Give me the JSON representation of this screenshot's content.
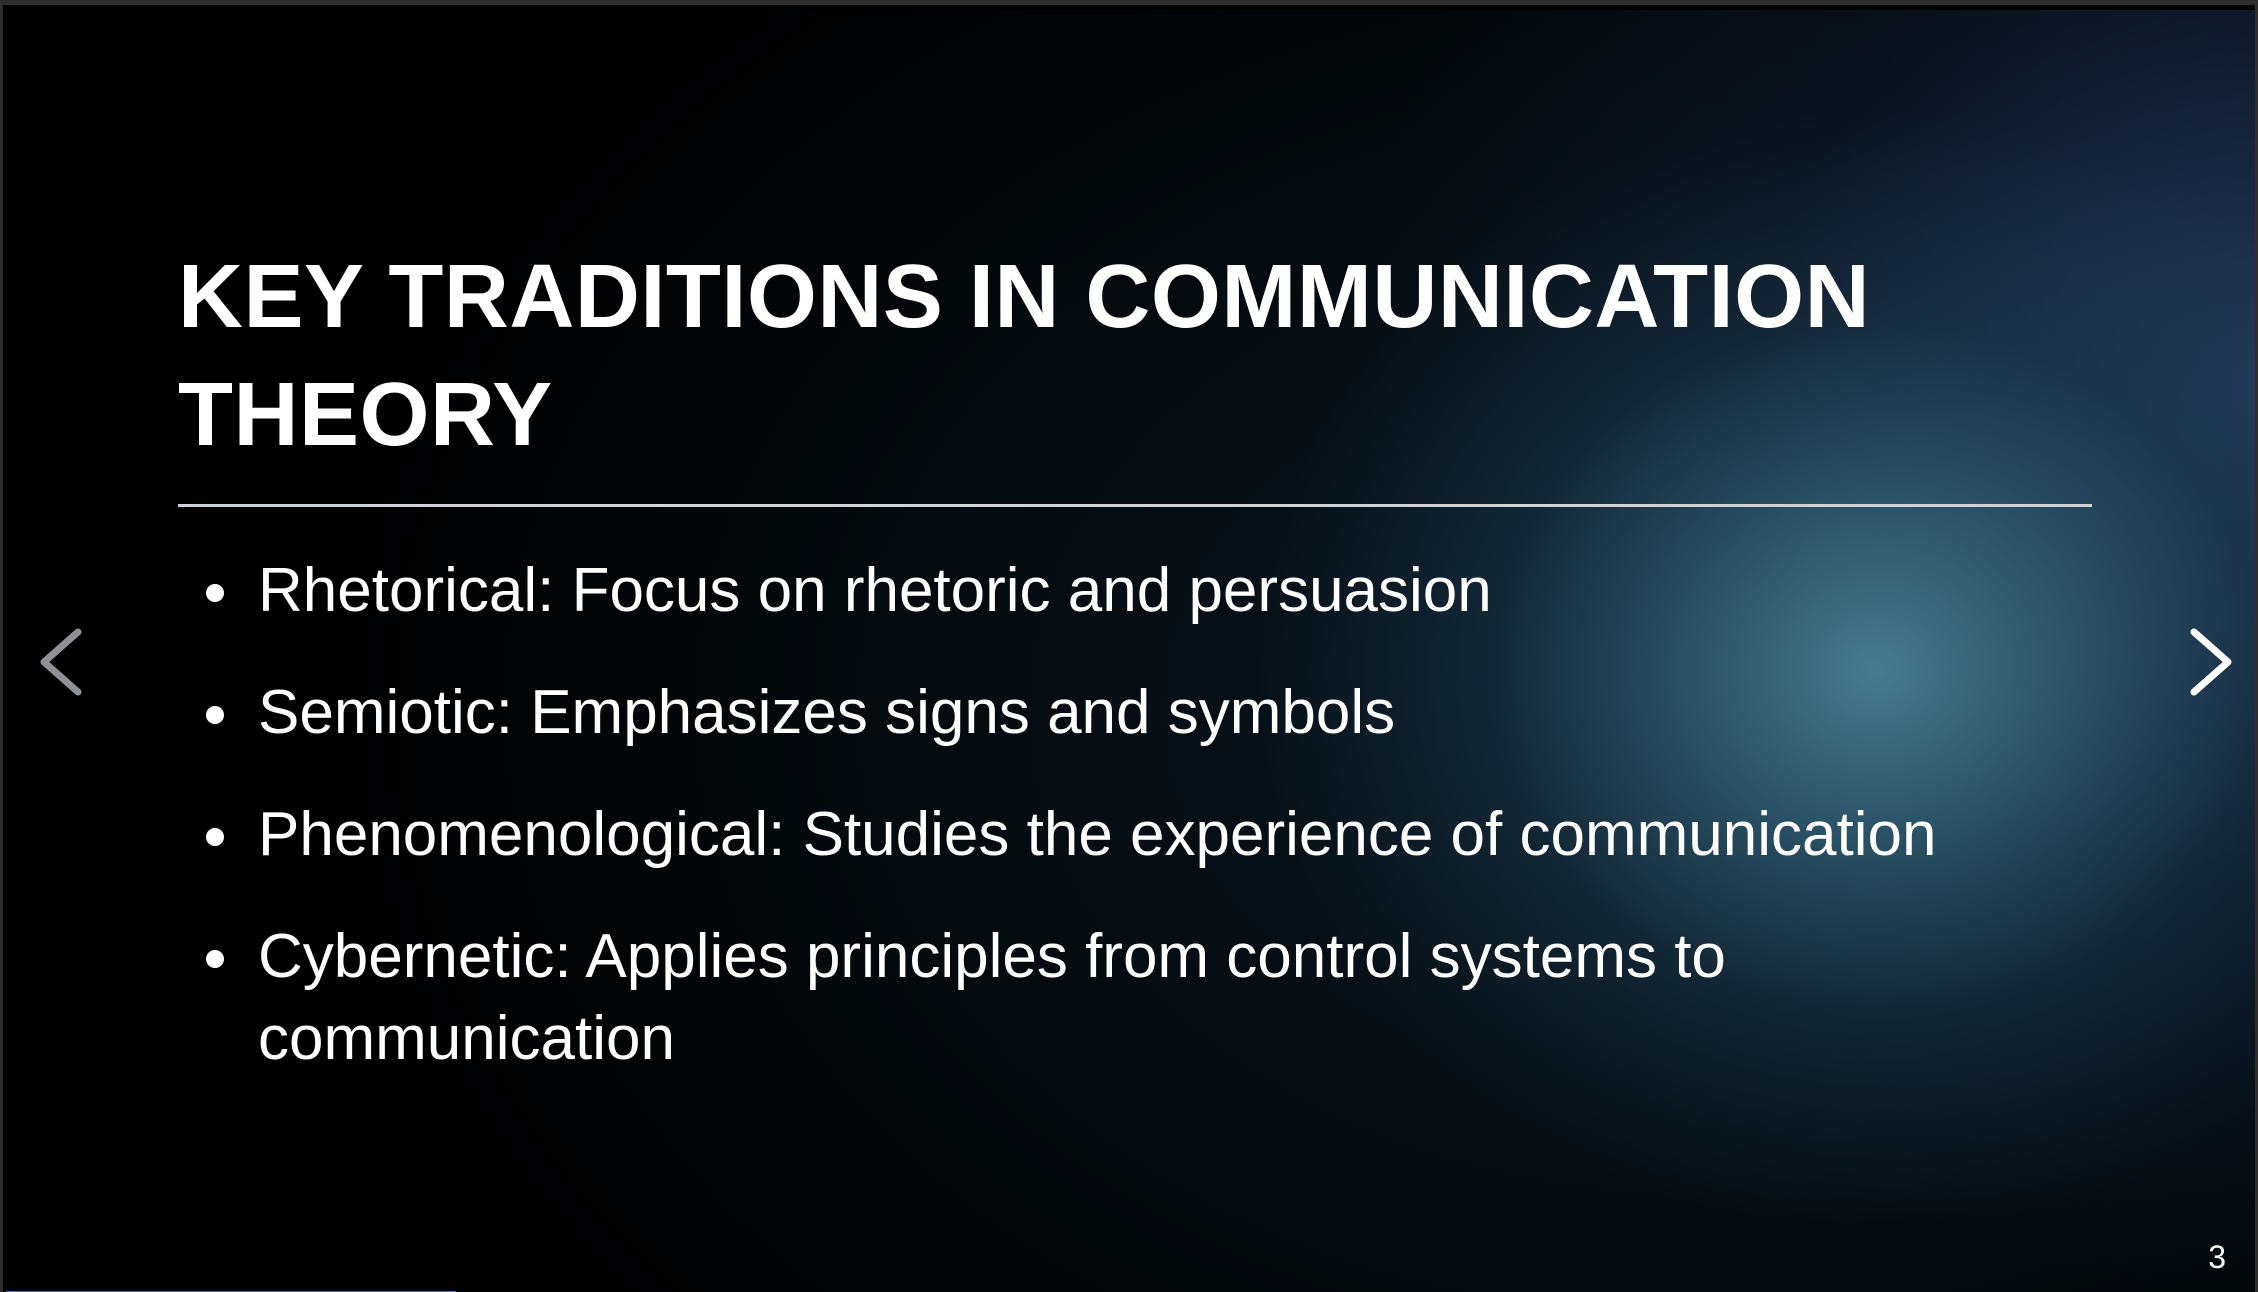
{
  "slide": {
    "title": "KEY TRADITIONS IN COMMUNICATION THEORY",
    "bullets": [
      "Rhetorical: Focus on rhetoric and persuasion",
      "Semiotic: Emphasizes signs and symbols",
      "Phenomenological: Studies the experience of communication",
      "Cybernetic: Applies principles from control systems to communication"
    ],
    "page_number": "3"
  },
  "navigation": {
    "prev_icon": "chevron-left-icon",
    "next_icon": "chevron-right-icon"
  },
  "progress": {
    "fraction": 0.2
  },
  "colors": {
    "background": "#000000",
    "text": "#ffffff",
    "divider": "#cfd3d6",
    "progress": "#3f6fc9",
    "glow": "#4a8096"
  }
}
